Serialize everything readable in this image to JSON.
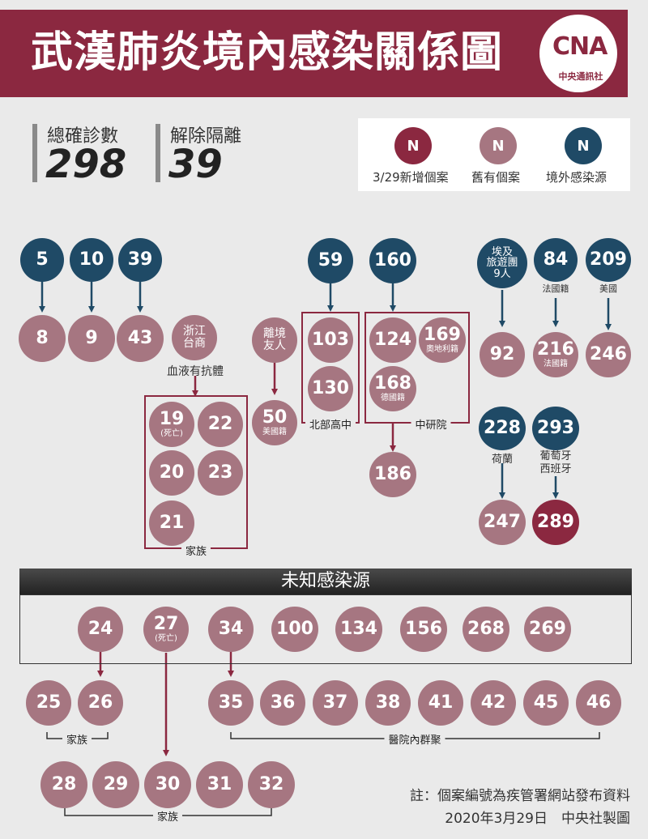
{
  "header": {
    "title": "武漢肺炎境內感染關係圖",
    "logo_text": "CNA",
    "logo_sub": "中央通訊社"
  },
  "stats": {
    "confirmed_label": "總確診數",
    "confirmed_value": "298",
    "released_label": "解除隔離",
    "released_value": "39"
  },
  "legend": {
    "items": [
      {
        "symbol": "N",
        "label": "3/29新增個案"
      },
      {
        "symbol": "N",
        "label": "舊有個案"
      },
      {
        "symbol": "N",
        "label": "境外感染源"
      }
    ]
  },
  "colors": {
    "new_case": "#8b2840",
    "old_case": "#a67681",
    "imported_source": "#1f4a66",
    "banner": "#8b2840"
  },
  "cases": {
    "c5": "5",
    "c10": "10",
    "c39": "39",
    "c8": "8",
    "c9": "9",
    "c43": "43",
    "c59": "59",
    "c160": "160",
    "c103": "103",
    "c130": "130",
    "c124": "124",
    "c169": "169",
    "c169_sub": "奧地利籍",
    "c168": "168",
    "c168_sub": "德國籍",
    "c186": "186",
    "c92": "92",
    "c84": "84",
    "c84_sub": "法國籍",
    "c209": "209",
    "c216": "216",
    "c216_sub": "法國籍",
    "c246": "246",
    "c228": "228",
    "c293": "293",
    "c247": "247",
    "c289": "289",
    "c19": "19",
    "c19_sub": "(死亡)",
    "c22": "22",
    "c20": "20",
    "c23": "23",
    "c21": "21",
    "c50": "50",
    "c50_sub": "美國籍"
  },
  "labels": {
    "zhejiang": "浙江\n台商",
    "blood_antibody": "血液有抗體",
    "abroad_friend": "離境\n友人",
    "egypt_tour": "埃及\n旅遊團\n9人",
    "usa": "美國",
    "netherlands": "荷蘭",
    "portugal_spain": "葡萄牙\n西班牙",
    "north_high": "北部高中",
    "academia": "中研院",
    "family": "家族"
  },
  "unknown": {
    "title": "未知感染源",
    "sources": [
      "24",
      "27",
      "34",
      "100",
      "134",
      "156",
      "268",
      "269"
    ],
    "c27_sub": "(死亡)",
    "family_a": [
      "25",
      "26"
    ],
    "family_a_label": "家族",
    "hospital": [
      "35",
      "36",
      "37",
      "38",
      "41",
      "42",
      "45",
      "46"
    ],
    "hospital_label": "醫院內群聚",
    "family_b": [
      "28",
      "29",
      "30",
      "31",
      "32"
    ],
    "family_b_label": "家族"
  },
  "footer": {
    "note": "註：個案編號為疾管署網站發布資料",
    "credit": "2020年3月29日　中央社製圖"
  }
}
